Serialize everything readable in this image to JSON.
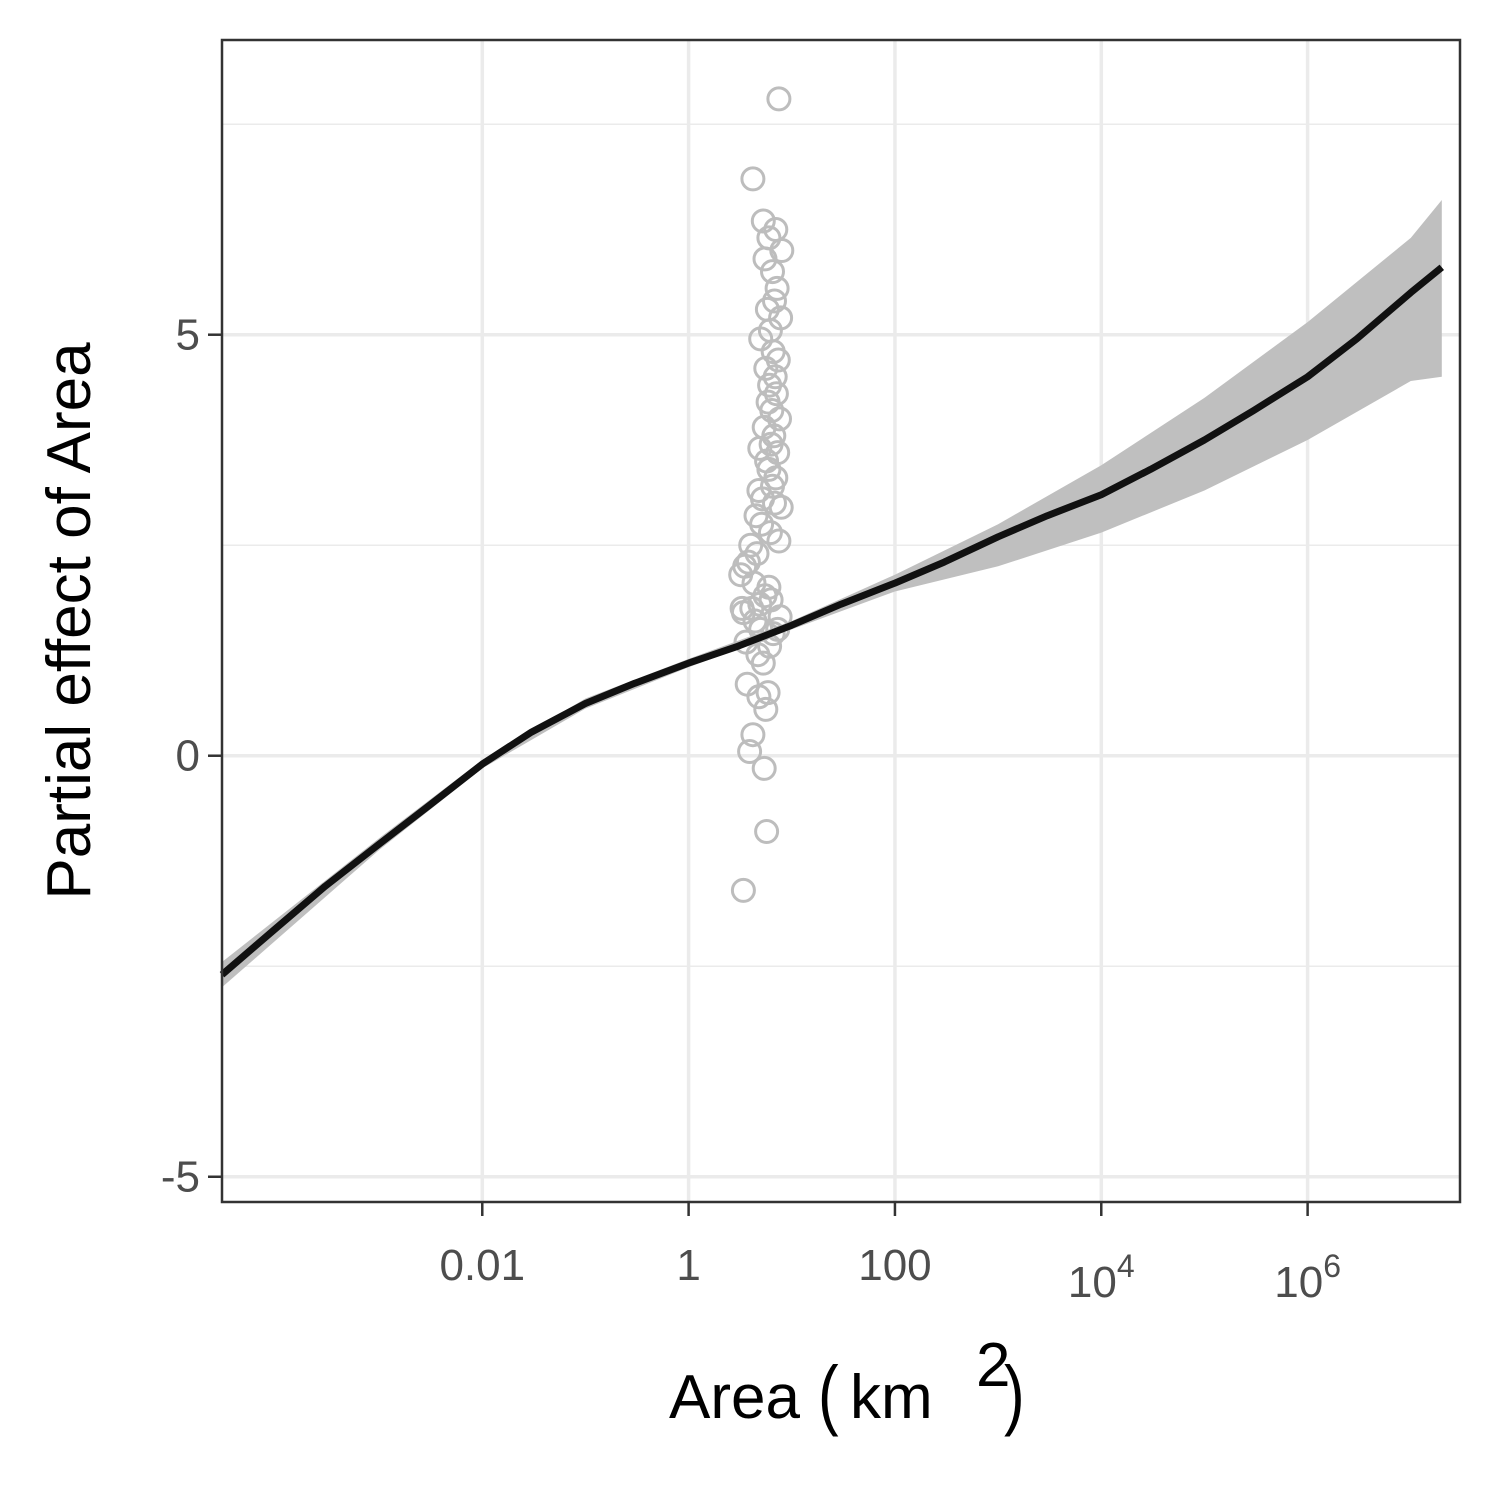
{
  "chart_data": {
    "type": "line",
    "title": "",
    "xlabel": "Area",
    "xlabel_unit": "km",
    "xlabel_unit_superscript": "2",
    "ylabel": "Partial effect of Area",
    "x_scale": "log10",
    "xlim": [
      3e-05,
      30000000
    ],
    "ylim": [
      -5.3,
      8.5
    ],
    "grid": true,
    "legend": "none",
    "x_ticks": [
      {
        "value": 0.01,
        "base": "0.01",
        "exp": ""
      },
      {
        "value": 1,
        "base": "1",
        "exp": ""
      },
      {
        "value": 100,
        "base": "100",
        "exp": ""
      },
      {
        "value": 10000,
        "base": "10",
        "exp": "4"
      },
      {
        "value": 1000000,
        "base": "10",
        "exp": "6"
      }
    ],
    "y_ticks": [
      {
        "value": -5,
        "label": "-5"
      },
      {
        "value": 0,
        "label": "0"
      },
      {
        "value": 5,
        "label": "5"
      }
    ],
    "colors": {
      "line": "#111111",
      "ribbon": "#bfbfbf",
      "points": "#bdbdbd",
      "grid": "#ebebeb",
      "frame": "#333333"
    },
    "series": [
      {
        "kind": "fit",
        "x": [
          3e-05,
          0.0001,
          0.0003,
          0.001,
          0.003,
          0.01,
          0.03,
          0.1,
          0.3,
          1,
          3,
          10,
          30,
          100,
          300,
          1000,
          3000,
          10000,
          30000,
          100000,
          300000,
          1000000,
          3000000,
          10000000,
          20000000
        ],
        "y": [
          -2.6,
          -2.05,
          -1.55,
          -1.05,
          -0.6,
          -0.1,
          0.28,
          0.62,
          0.86,
          1.1,
          1.3,
          1.55,
          1.8,
          2.05,
          2.3,
          2.6,
          2.85,
          3.1,
          3.4,
          3.75,
          4.1,
          4.5,
          4.95,
          5.5,
          5.8
        ]
      },
      {
        "kind": "ci_upper",
        "x": [
          3e-05,
          0.001,
          0.01,
          0.1,
          1,
          10,
          100,
          1000,
          10000,
          100000,
          1000000,
          10000000,
          20000000
        ],
        "y": [
          -2.45,
          -0.98,
          -0.05,
          0.68,
          1.15,
          1.6,
          2.15,
          2.75,
          3.45,
          4.25,
          5.15,
          6.15,
          6.6
        ]
      },
      {
        "kind": "ci_lower",
        "x": [
          3e-05,
          0.001,
          0.01,
          0.1,
          1,
          10,
          100,
          1000,
          10000,
          100000,
          1000000,
          10000000,
          20000000
        ],
        "y": [
          -2.75,
          -1.12,
          -0.15,
          0.56,
          1.05,
          1.5,
          1.95,
          2.25,
          2.65,
          3.15,
          3.75,
          4.45,
          4.5
        ]
      },
      {
        "kind": "observations",
        "x": [
          7.5,
          4.2,
          5.3,
          7.0,
          6.0,
          8.0,
          5.5,
          6.5,
          7.2,
          6.8,
          5.8,
          7.8,
          6.2,
          5.0,
          6.6,
          7.4,
          5.6,
          6.9,
          6.1,
          7.1,
          5.9,
          6.4,
          7.6,
          5.4,
          6.7,
          6.3,
          7.3,
          5.7,
          6.0,
          7.0,
          6.5,
          4.8,
          5.2,
          6.8,
          7.9,
          4.5,
          5.1,
          6.2,
          7.5,
          4.0,
          4.6,
          3.5,
          3.2,
          3.8,
          4.3,
          6.0,
          5.5,
          3.4,
          4.1,
          4.9,
          6.3,
          7.7,
          3.3,
          4.4,
          6.6,
          7.3,
          3.6,
          5.0,
          6.1,
          4.7,
          3.7,
          5.3,
          4.8,
          5.6,
          5.9,
          4.2,
          3.9,
          5.4,
          5.7,
          3.4,
          4.9
        ],
        "y": [
          7.8,
          6.85,
          6.35,
          6.25,
          6.15,
          6.0,
          5.9,
          5.75,
          5.55,
          5.4,
          5.3,
          5.2,
          5.05,
          4.95,
          4.8,
          4.7,
          4.6,
          4.5,
          4.4,
          4.3,
          4.2,
          4.1,
          4.0,
          3.9,
          3.8,
          3.7,
          3.6,
          3.5,
          3.4,
          3.3,
          3.2,
          3.15,
          3.05,
          3.0,
          2.95,
          2.85,
          2.75,
          2.65,
          2.55,
          2.5,
          2.4,
          2.25,
          2.15,
          2.3,
          2.05,
          2.0,
          1.9,
          1.7,
          1.75,
          1.8,
          1.85,
          1.65,
          1.75,
          1.6,
          1.45,
          1.5,
          1.35,
          1.5,
          1.3,
          1.2,
          0.85,
          1.1,
          0.7,
          0.55,
          0.75,
          0.25,
          0.05,
          -0.15,
          -0.9,
          -1.6,
          3.65
        ]
      }
    ]
  }
}
